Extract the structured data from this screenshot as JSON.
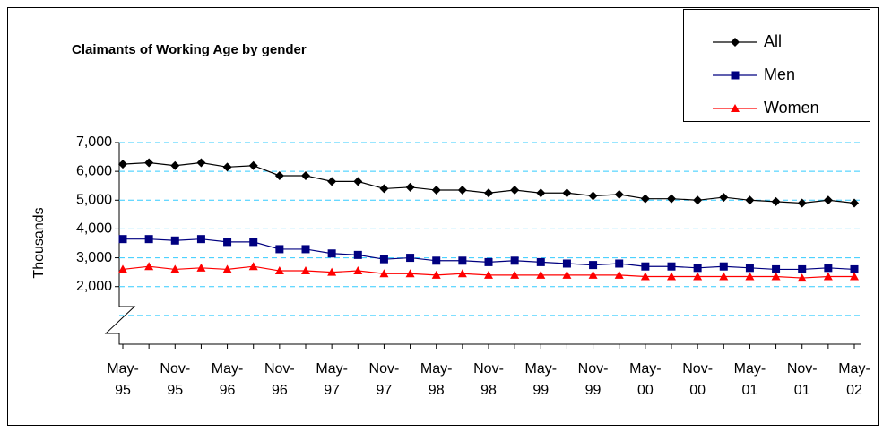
{
  "chart_data": {
    "type": "line",
    "title": "Claimants of Working Age by gender",
    "y_label": "Thousands",
    "categories": [
      "May-95",
      null,
      "Nov-95",
      null,
      "May-96",
      null,
      "Nov-96",
      null,
      "May-97",
      null,
      "Nov-97",
      null,
      "May-98",
      null,
      "Nov-98",
      null,
      "May-99",
      null,
      "Nov-99",
      null,
      "May-00",
      null,
      "Nov-00",
      null,
      "May-01",
      null,
      "Nov-01",
      null,
      "May-02"
    ],
    "series": [
      {
        "name": "All",
        "color": "#000000",
        "marker": "diamond",
        "values": [
          6250,
          6300,
          6200,
          6300,
          6150,
          6200,
          5850,
          5850,
          5650,
          5650,
          5400,
          5450,
          5350,
          5350,
          5250,
          5350,
          5250,
          5250,
          5150,
          5200,
          5050,
          5050,
          5000,
          5100,
          5000,
          4950,
          4900,
          5000,
          4900
        ]
      },
      {
        "name": "Men",
        "color": "#000080",
        "marker": "square",
        "values": [
          3650,
          3650,
          3600,
          3650,
          3550,
          3550,
          3300,
          3300,
          3150,
          3100,
          2950,
          3000,
          2900,
          2900,
          2850,
          2900,
          2850,
          2800,
          2750,
          2800,
          2700,
          2700,
          2650,
          2700,
          2650,
          2600,
          2600,
          2650,
          2600
        ]
      },
      {
        "name": "Women",
        "color": "#ff0000",
        "marker": "triangle",
        "values": [
          2600,
          2700,
          2600,
          2650,
          2600,
          2700,
          2550,
          2550,
          2500,
          2550,
          2450,
          2450,
          2400,
          2450,
          2400,
          2400,
          2400,
          2400,
          2400,
          2400,
          2350,
          2350,
          2350,
          2350,
          2350,
          2350,
          2300,
          2350,
          2350
        ]
      }
    ],
    "ylim": [
      0,
      7000
    ],
    "yticks": [
      {
        "value": 2000,
        "label": "2,000"
      },
      {
        "value": 3000,
        "label": "3,000"
      },
      {
        "value": 4000,
        "label": "4,000"
      },
      {
        "value": 5000,
        "label": "5,000"
      },
      {
        "value": 6000,
        "label": "6,000"
      },
      {
        "value": 7000,
        "label": "7,000"
      }
    ],
    "grid": true,
    "grid_color": "#33ccff",
    "legend": "top-right"
  }
}
